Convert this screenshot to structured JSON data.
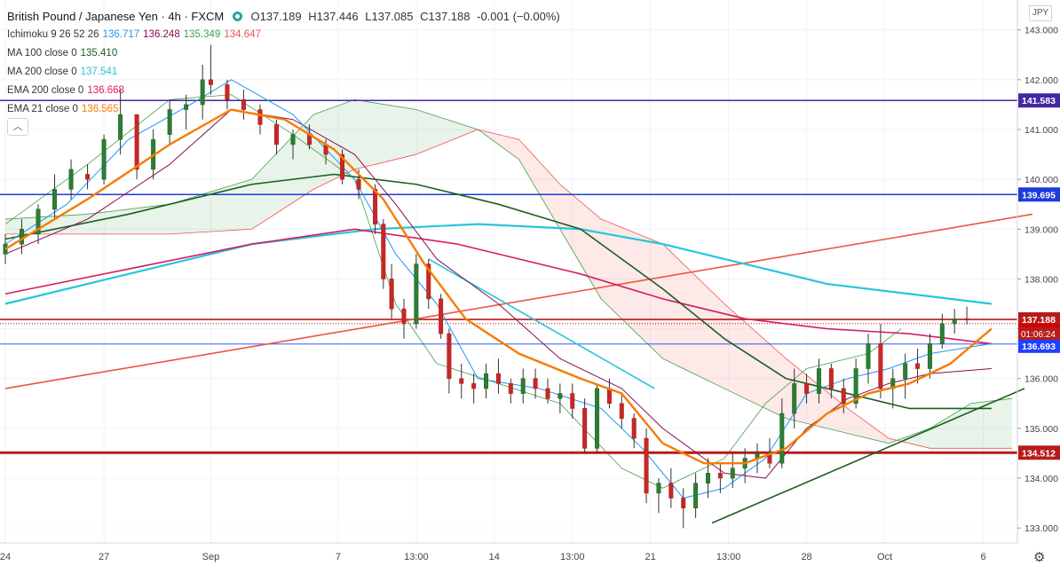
{
  "header": {
    "symbol": "British Pound / Japanese Yen · 4h · FXCM",
    "ohlc": {
      "o": "O137.189",
      "h": "H137.446",
      "l": "L137.085",
      "c": "C137.188",
      "chg": "-0.001 (−0.00%)"
    },
    "indicators": [
      {
        "label": "Ichimoku 9 26 52 26",
        "values": [
          {
            "v": "136.717",
            "color": "#2196f3"
          },
          {
            "v": "136.248",
            "color": "#880e4f"
          },
          {
            "v": "135.349",
            "color": "#43a047"
          },
          {
            "v": "134.647",
            "color": "#ef5350"
          }
        ]
      },
      {
        "label": "MA 100 close 0",
        "values": [
          {
            "v": "135.410",
            "color": "#1b5e20"
          }
        ]
      },
      {
        "label": "MA 200 close 0",
        "values": [
          {
            "v": "137.541",
            "color": "#26c6da"
          }
        ]
      },
      {
        "label": "EMA 200 close 0",
        "values": [
          {
            "v": "136.668",
            "color": "#d81b60"
          }
        ]
      },
      {
        "label": "EMA 21 close 0",
        "values": [
          {
            "v": "136.565",
            "color": "#f57c00"
          }
        ]
      }
    ],
    "currency": "JPY"
  },
  "chart_data": {
    "type": "line",
    "title": "British Pound / Japanese Yen · 4h · FXCM",
    "ylim": [
      132.7,
      143.6
    ],
    "y_ticks": [
      "143.000",
      "142.000",
      "141.000",
      "140.000",
      "139.000",
      "138.000",
      "137.000",
      "136.000",
      "135.000",
      "134.000",
      "133.000"
    ],
    "x_ticks": [
      "24",
      "27",
      "Sep",
      "7",
      "13:00",
      "14",
      "13:00",
      "21",
      "13:00",
      "28",
      "Oct",
      "6"
    ],
    "x_tick_pos": [
      0,
      24,
      50,
      81,
      100,
      119,
      138,
      157,
      176,
      195,
      214,
      238
    ],
    "n_bars": 245,
    "candles": [
      [
        0,
        138.5,
        138.9,
        138.3,
        138.7
      ],
      [
        4,
        138.7,
        139.2,
        138.5,
        139.0
      ],
      [
        8,
        138.9,
        139.5,
        138.7,
        139.4
      ],
      [
        12,
        139.4,
        140.1,
        139.2,
        139.8
      ],
      [
        16,
        139.8,
        140.4,
        139.6,
        140.2
      ],
      [
        20,
        140.1,
        140.3,
        139.8,
        140.0
      ],
      [
        24,
        140.0,
        140.9,
        139.9,
        140.8
      ],
      [
        28,
        140.8,
        141.8,
        140.5,
        141.3
      ],
      [
        32,
        141.3,
        141.2,
        140.0,
        140.2
      ],
      [
        36,
        140.2,
        141.0,
        140.0,
        140.8
      ],
      [
        40,
        140.9,
        141.6,
        140.7,
        141.4
      ],
      [
        44,
        141.4,
        141.7,
        141.0,
        141.5
      ],
      [
        48,
        141.5,
        142.3,
        141.2,
        142.0
      ],
      [
        50,
        142.0,
        142.7,
        141.7,
        141.9
      ],
      [
        54,
        141.9,
        142.0,
        141.4,
        141.6
      ],
      [
        58,
        141.6,
        141.8,
        141.2,
        141.4
      ],
      [
        62,
        141.4,
        141.5,
        140.9,
        141.1
      ],
      [
        66,
        141.1,
        141.2,
        140.5,
        140.7
      ],
      [
        70,
        140.7,
        141.0,
        140.4,
        140.9
      ],
      [
        74,
        140.9,
        141.1,
        140.6,
        140.7
      ],
      [
        78,
        140.7,
        140.8,
        140.3,
        140.5
      ],
      [
        82,
        140.5,
        140.6,
        139.9,
        140.0
      ],
      [
        86,
        140.0,
        140.2,
        139.6,
        139.8
      ],
      [
        90,
        139.8,
        139.9,
        138.9,
        139.1
      ],
      [
        92,
        139.1,
        139.2,
        137.8,
        138.0
      ],
      [
        94,
        138.0,
        138.3,
        137.2,
        137.4
      ],
      [
        97,
        137.4,
        137.6,
        136.8,
        137.1
      ],
      [
        100,
        137.1,
        138.5,
        137.0,
        138.3
      ],
      [
        103,
        138.3,
        138.4,
        137.4,
        137.6
      ],
      [
        106,
        137.6,
        137.7,
        136.8,
        136.9
      ],
      [
        108,
        136.9,
        137.0,
        135.7,
        136.0
      ],
      [
        111,
        136.0,
        136.3,
        135.6,
        135.9
      ],
      [
        114,
        135.9,
        136.1,
        135.5,
        135.8
      ],
      [
        117,
        135.8,
        136.3,
        135.6,
        136.1
      ],
      [
        120,
        136.1,
        136.4,
        135.7,
        135.9
      ],
      [
        123,
        135.9,
        136.0,
        135.5,
        135.7
      ],
      [
        126,
        135.7,
        136.2,
        135.5,
        136.0
      ],
      [
        129,
        136.0,
        136.2,
        135.6,
        135.8
      ],
      [
        132,
        135.8,
        136.0,
        135.5,
        135.6
      ],
      [
        135,
        135.6,
        135.9,
        135.3,
        135.7
      ],
      [
        138,
        135.7,
        135.9,
        135.2,
        135.4
      ],
      [
        141,
        135.4,
        135.6,
        134.5,
        134.6
      ],
      [
        144,
        134.6,
        135.9,
        134.5,
        135.8
      ],
      [
        147,
        135.8,
        136.0,
        135.4,
        135.5
      ],
      [
        150,
        135.5,
        135.7,
        135.0,
        135.2
      ],
      [
        153,
        135.2,
        135.3,
        134.6,
        134.8
      ],
      [
        156,
        134.8,
        135.0,
        133.5,
        133.7
      ],
      [
        159,
        133.7,
        134.0,
        133.3,
        133.9
      ],
      [
        162,
        133.9,
        134.2,
        133.4,
        133.6
      ],
      [
        165,
        133.6,
        133.8,
        133.0,
        133.4
      ],
      [
        168,
        133.4,
        134.1,
        133.2,
        133.9
      ],
      [
        171,
        133.9,
        134.4,
        133.6,
        134.1
      ],
      [
        174,
        134.1,
        134.3,
        133.7,
        134.0
      ],
      [
        177,
        134.0,
        134.5,
        133.8,
        134.2
      ],
      [
        180,
        134.2,
        134.6,
        133.9,
        134.4
      ],
      [
        183,
        134.4,
        134.7,
        134.1,
        134.5
      ],
      [
        186,
        134.5,
        134.8,
        134.2,
        134.3
      ],
      [
        189,
        134.3,
        135.6,
        134.2,
        135.3
      ],
      [
        192,
        135.3,
        136.2,
        135.0,
        135.9
      ],
      [
        195,
        135.9,
        136.1,
        135.5,
        135.7
      ],
      [
        198,
        135.7,
        136.4,
        135.5,
        136.2
      ],
      [
        201,
        136.2,
        136.3,
        135.6,
        135.8
      ],
      [
        204,
        135.8,
        136.0,
        135.3,
        135.5
      ],
      [
        207,
        135.5,
        136.4,
        135.4,
        136.2
      ],
      [
        210,
        136.2,
        136.9,
        135.9,
        136.7
      ],
      [
        213,
        136.7,
        137.1,
        135.6,
        135.8
      ],
      [
        216,
        135.8,
        136.2,
        135.4,
        136.0
      ],
      [
        219,
        136.0,
        136.5,
        135.6,
        136.3
      ],
      [
        222,
        136.3,
        136.6,
        135.9,
        136.2
      ],
      [
        225,
        136.2,
        136.9,
        136.0,
        136.7
      ],
      [
        228,
        136.7,
        137.3,
        136.6,
        137.1
      ],
      [
        231,
        137.1,
        137.4,
        136.9,
        137.2
      ],
      [
        234,
        137.2,
        137.446,
        137.085,
        137.188
      ]
    ],
    "series": [
      {
        "key": "ema21",
        "values": [
          [
            0,
            138.6
          ],
          [
            20,
            139.6
          ],
          [
            40,
            140.7
          ],
          [
            55,
            141.4
          ],
          [
            68,
            141.2
          ],
          [
            80,
            140.6
          ],
          [
            92,
            139.6
          ],
          [
            102,
            138.3
          ],
          [
            112,
            137.2
          ],
          [
            125,
            136.5
          ],
          [
            140,
            136.0
          ],
          [
            150,
            135.7
          ],
          [
            160,
            134.7
          ],
          [
            170,
            134.3
          ],
          [
            180,
            134.3
          ],
          [
            190,
            134.6
          ],
          [
            200,
            135.3
          ],
          [
            210,
            135.7
          ],
          [
            220,
            135.9
          ],
          [
            230,
            136.3
          ],
          [
            240,
            137.0
          ]
        ]
      },
      {
        "key": "ma100",
        "values": [
          [
            0,
            138.8
          ],
          [
            30,
            139.3
          ],
          [
            60,
            139.9
          ],
          [
            80,
            140.1
          ],
          [
            100,
            139.9
          ],
          [
            120,
            139.5
          ],
          [
            140,
            139.0
          ],
          [
            160,
            137.8
          ],
          [
            175,
            136.8
          ],
          [
            190,
            136.0
          ],
          [
            205,
            135.7
          ],
          [
            220,
            135.4
          ],
          [
            240,
            135.4
          ]
        ]
      },
      {
        "key": "ma200",
        "values": [
          [
            0,
            137.5
          ],
          [
            30,
            138.1
          ],
          [
            60,
            138.7
          ],
          [
            90,
            139.0
          ],
          [
            115,
            139.1
          ],
          [
            140,
            139.0
          ],
          [
            160,
            138.7
          ],
          [
            180,
            138.3
          ],
          [
            200,
            137.9
          ],
          [
            220,
            137.7
          ],
          [
            240,
            137.5
          ]
        ]
      },
      {
        "key": "ema200",
        "values": [
          [
            0,
            137.7
          ],
          [
            30,
            138.2
          ],
          [
            60,
            138.7
          ],
          [
            85,
            139.0
          ],
          [
            110,
            138.7
          ],
          [
            140,
            138.1
          ],
          [
            160,
            137.6
          ],
          [
            180,
            137.2
          ],
          [
            200,
            137.0
          ],
          [
            220,
            136.9
          ],
          [
            240,
            136.7
          ]
        ]
      },
      {
        "key": "tenkan",
        "values": [
          [
            0,
            138.7
          ],
          [
            15,
            139.5
          ],
          [
            30,
            140.8
          ],
          [
            45,
            141.5
          ],
          [
            55,
            142.0
          ],
          [
            70,
            141.3
          ],
          [
            85,
            140.0
          ],
          [
            95,
            138.5
          ],
          [
            105,
            137.5
          ],
          [
            115,
            136.0
          ],
          [
            130,
            135.8
          ],
          [
            145,
            135.4
          ],
          [
            155,
            134.6
          ],
          [
            165,
            133.6
          ],
          [
            175,
            133.8
          ],
          [
            185,
            134.4
          ],
          [
            195,
            135.7
          ],
          [
            205,
            136.0
          ],
          [
            215,
            136.2
          ],
          [
            225,
            136.5
          ],
          [
            240,
            136.7
          ]
        ]
      },
      {
        "key": "kijun",
        "values": [
          [
            0,
            138.5
          ],
          [
            20,
            139.2
          ],
          [
            40,
            140.3
          ],
          [
            55,
            141.4
          ],
          [
            70,
            141.2
          ],
          [
            85,
            140.5
          ],
          [
            95,
            139.5
          ],
          [
            105,
            138.4
          ],
          [
            120,
            137.5
          ],
          [
            135,
            136.4
          ],
          [
            150,
            135.8
          ],
          [
            160,
            135.0
          ],
          [
            175,
            134.1
          ],
          [
            185,
            134.0
          ],
          [
            195,
            135.0
          ],
          [
            205,
            135.6
          ],
          [
            215,
            135.9
          ],
          [
            225,
            136.1
          ],
          [
            240,
            136.2
          ]
        ]
      },
      {
        "key": "chikou",
        "values": [
          [
            0,
            139.1
          ],
          [
            20,
            140.3
          ],
          [
            40,
            141.6
          ],
          [
            55,
            141.7
          ],
          [
            70,
            140.9
          ],
          [
            85,
            140.0
          ],
          [
            95,
            137.5
          ],
          [
            105,
            136.3
          ],
          [
            120,
            135.9
          ],
          [
            135,
            135.5
          ],
          [
            150,
            134.2
          ],
          [
            160,
            133.8
          ],
          [
            175,
            134.4
          ],
          [
            185,
            135.5
          ],
          [
            195,
            136.2
          ],
          [
            210,
            136.5
          ],
          [
            218,
            137.0
          ]
        ]
      },
      {
        "key": "spanA",
        "values": [
          [
            0,
            139.2
          ],
          [
            20,
            139.3
          ],
          [
            40,
            139.5
          ],
          [
            60,
            140.0
          ],
          [
            75,
            141.3
          ],
          [
            85,
            141.6
          ],
          [
            100,
            141.4
          ],
          [
            115,
            141.0
          ],
          [
            125,
            140.4
          ],
          [
            135,
            139.0
          ],
          [
            145,
            137.6
          ],
          [
            160,
            136.4
          ],
          [
            175,
            135.8
          ],
          [
            190,
            135.2
          ],
          [
            205,
            134.9
          ],
          [
            215,
            134.7
          ],
          [
            225,
            135.0
          ],
          [
            235,
            135.5
          ],
          [
            245,
            135.6
          ]
        ]
      },
      {
        "key": "spanB",
        "values": [
          [
            0,
            138.9
          ],
          [
            20,
            138.9
          ],
          [
            40,
            138.9
          ],
          [
            60,
            139.0
          ],
          [
            75,
            139.8
          ],
          [
            85,
            140.2
          ],
          [
            100,
            140.5
          ],
          [
            115,
            141.0
          ],
          [
            125,
            140.8
          ],
          [
            135,
            139.9
          ],
          [
            145,
            139.2
          ],
          [
            160,
            138.7
          ],
          [
            175,
            137.5
          ],
          [
            190,
            136.4
          ],
          [
            205,
            135.4
          ],
          [
            215,
            134.8
          ],
          [
            225,
            134.6
          ],
          [
            235,
            134.6
          ],
          [
            245,
            134.6
          ]
        ]
      }
    ],
    "levels": [
      {
        "label": "141.583",
        "value": 141.583,
        "color": "#4527a0"
      },
      {
        "label": "139.695",
        "value": 139.695,
        "color": "#1e3ad8"
      },
      {
        "label": "137.188",
        "value": 137.188,
        "color": "#b71c1c"
      },
      {
        "label": "137.103",
        "value": 137.103,
        "color": "#d50000"
      },
      {
        "label": "136.693",
        "value": 136.693,
        "color": "#1e40ff"
      },
      {
        "label": "134.512",
        "value": 134.512,
        "color": "#b71c1c"
      }
    ],
    "countdown": "01:06:24",
    "trendlines": [
      {
        "key": "red",
        "from": [
          0,
          135.8
        ],
        "to": [
          250,
          139.3
        ],
        "color": "#ef5340"
      },
      {
        "key": "cyan",
        "from": [
          103,
          138.4
        ],
        "to": [
          158,
          135.8
        ],
        "color": "#26c6da"
      },
      {
        "key": "green",
        "from": [
          172,
          133.1
        ],
        "to": [
          248,
          135.8
        ],
        "color": "#1b5e20"
      }
    ]
  }
}
